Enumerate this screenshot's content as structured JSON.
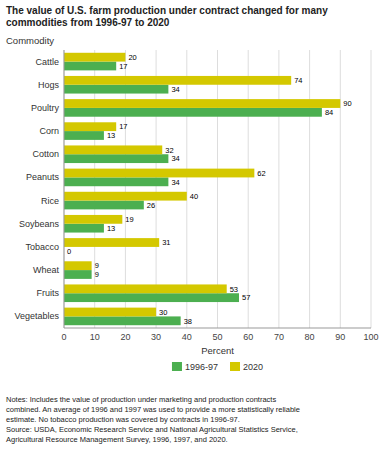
{
  "chart_data": {
    "type": "bar",
    "orientation": "horizontal",
    "title": "The value of U.S. farm production under contract changed for many\ncommodities from 1996-97 to 2020",
    "xlabel": "Percent",
    "ylabel": "Commodity",
    "categories": [
      "Cattle",
      "Hogs",
      "Poultry",
      "Corn",
      "Cotton",
      "Peanuts",
      "Rice",
      "Soybeans",
      "Tobacco",
      "Wheat",
      "Fruits",
      "Vegetables"
    ],
    "series": [
      {
        "name": "1996-97",
        "color": "#4caf50",
        "values": [
          17,
          34,
          84,
          13,
          34,
          34,
          26,
          13,
          0,
          9,
          57,
          38
        ]
      },
      {
        "name": "2020",
        "color": "#d4c800",
        "values": [
          20,
          74,
          90,
          17,
          32,
          62,
          40,
          19,
          31,
          9,
          53,
          30
        ]
      }
    ],
    "xlim": [
      0,
      100
    ],
    "xticks": [
      0,
      10,
      20,
      30,
      40,
      50,
      60,
      70,
      80,
      90,
      100
    ],
    "grid": true,
    "legend": "bottom",
    "data_labels": true,
    "annotations": [
      "Notes: Includes the value of production under marketing and production contracts",
      "combined. An average of 1996 and 1997 was used to provide a more statistically reliable",
      "estimate. No tobacco production was covered by contracts in 1996-97.",
      "Source: USDA, Economic Research Service and National Agricultural Statistics Service,",
      "Agricultural Resource Management Survey, 1996, 1997, and 2020."
    ]
  }
}
